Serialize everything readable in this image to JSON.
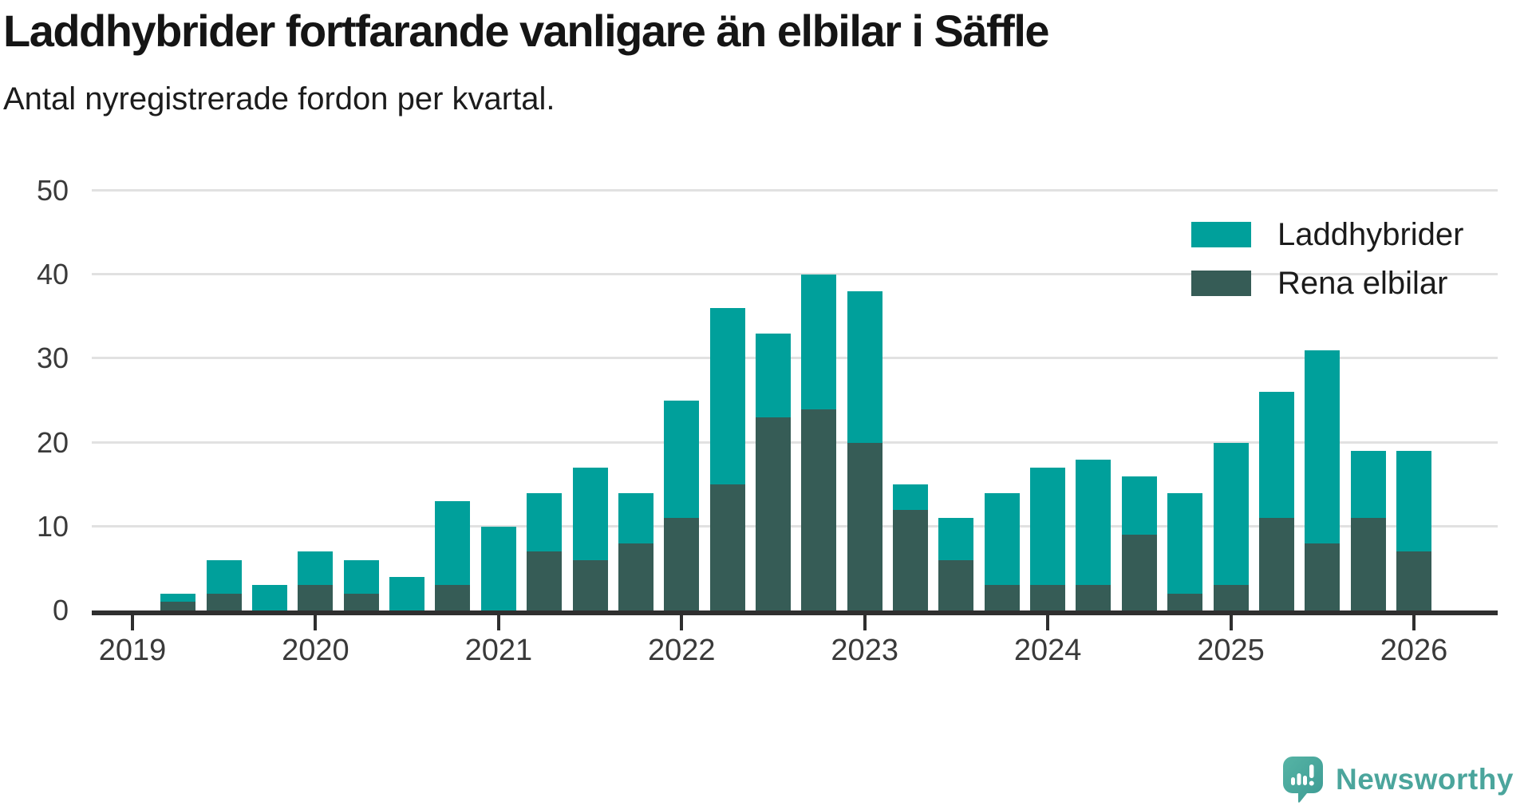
{
  "chart_data": {
    "type": "bar",
    "stacked": true,
    "title": "Laddhybrider fortfarande vanligare än elbilar i Säffle",
    "subtitle": "Antal nyregistrerade fordon per kvartal.",
    "categories": [
      "2019 Q1",
      "2019 Q2",
      "2019 Q3",
      "2019 Q4",
      "2020 Q1",
      "2020 Q2",
      "2020 Q3",
      "2020 Q4",
      "2021 Q1",
      "2021 Q2",
      "2021 Q3",
      "2021 Q4",
      "2022 Q1",
      "2022 Q2",
      "2022 Q3",
      "2022 Q4",
      "2023 Q1",
      "2023 Q2",
      "2023 Q3",
      "2023 Q4",
      "2024 Q1",
      "2024 Q2",
      "2024 Q3",
      "2024 Q4",
      "2025 Q1",
      "2025 Q2",
      "2025 Q3",
      "2025 Q4",
      "2026 Q1"
    ],
    "series": [
      {
        "name": "Laddhybrider",
        "color": "#00a09b",
        "values": [
          0,
          1,
          4,
          3,
          4,
          4,
          4,
          10,
          10,
          7,
          11,
          6,
          14,
          21,
          10,
          16,
          18,
          3,
          5,
          11,
          14,
          15,
          7,
          12,
          17,
          15,
          23,
          8,
          12
        ]
      },
      {
        "name": "Rena elbilar",
        "color": "#365c56",
        "values": [
          0,
          1,
          2,
          0,
          3,
          2,
          0,
          3,
          0,
          7,
          6,
          8,
          11,
          15,
          23,
          24,
          20,
          12,
          6,
          3,
          3,
          3,
          9,
          2,
          3,
          11,
          8,
          11,
          7
        ]
      }
    ],
    "stack_bottom": "Rena elbilar",
    "totals": [
      0,
      2,
      6,
      3,
      7,
      6,
      4,
      13,
      10,
      14,
      17,
      14,
      25,
      36,
      33,
      40,
      38,
      15,
      11,
      14,
      17,
      18,
      16,
      14,
      20,
      26,
      31,
      19,
      19
    ],
    "ylim": [
      0,
      50
    ],
    "yticks": [
      0,
      10,
      20,
      30,
      40,
      50
    ],
    "xtick_labels": [
      "2019",
      "2020",
      "2021",
      "2022",
      "2023",
      "2024",
      "2025",
      "2026"
    ],
    "xtick_quarter_indices": [
      0,
      4,
      8,
      12,
      16,
      20,
      24,
      28
    ],
    "grid": "horizontal",
    "legend_position": "top-right"
  },
  "colors": {
    "background": "#ffffff",
    "title": "#151515",
    "subtitle": "#1c1c1c",
    "axis_line": "#2f2f2f",
    "axis_label": "#3a3a3a",
    "gridline": "#e1e1e1",
    "legend_text": "#1b1b1b",
    "logo": "#4ba59c"
  },
  "branding": {
    "logo_text": "Newsworthy",
    "bubble_gradient": [
      "#56b4a5",
      "#3d9b94"
    ]
  }
}
